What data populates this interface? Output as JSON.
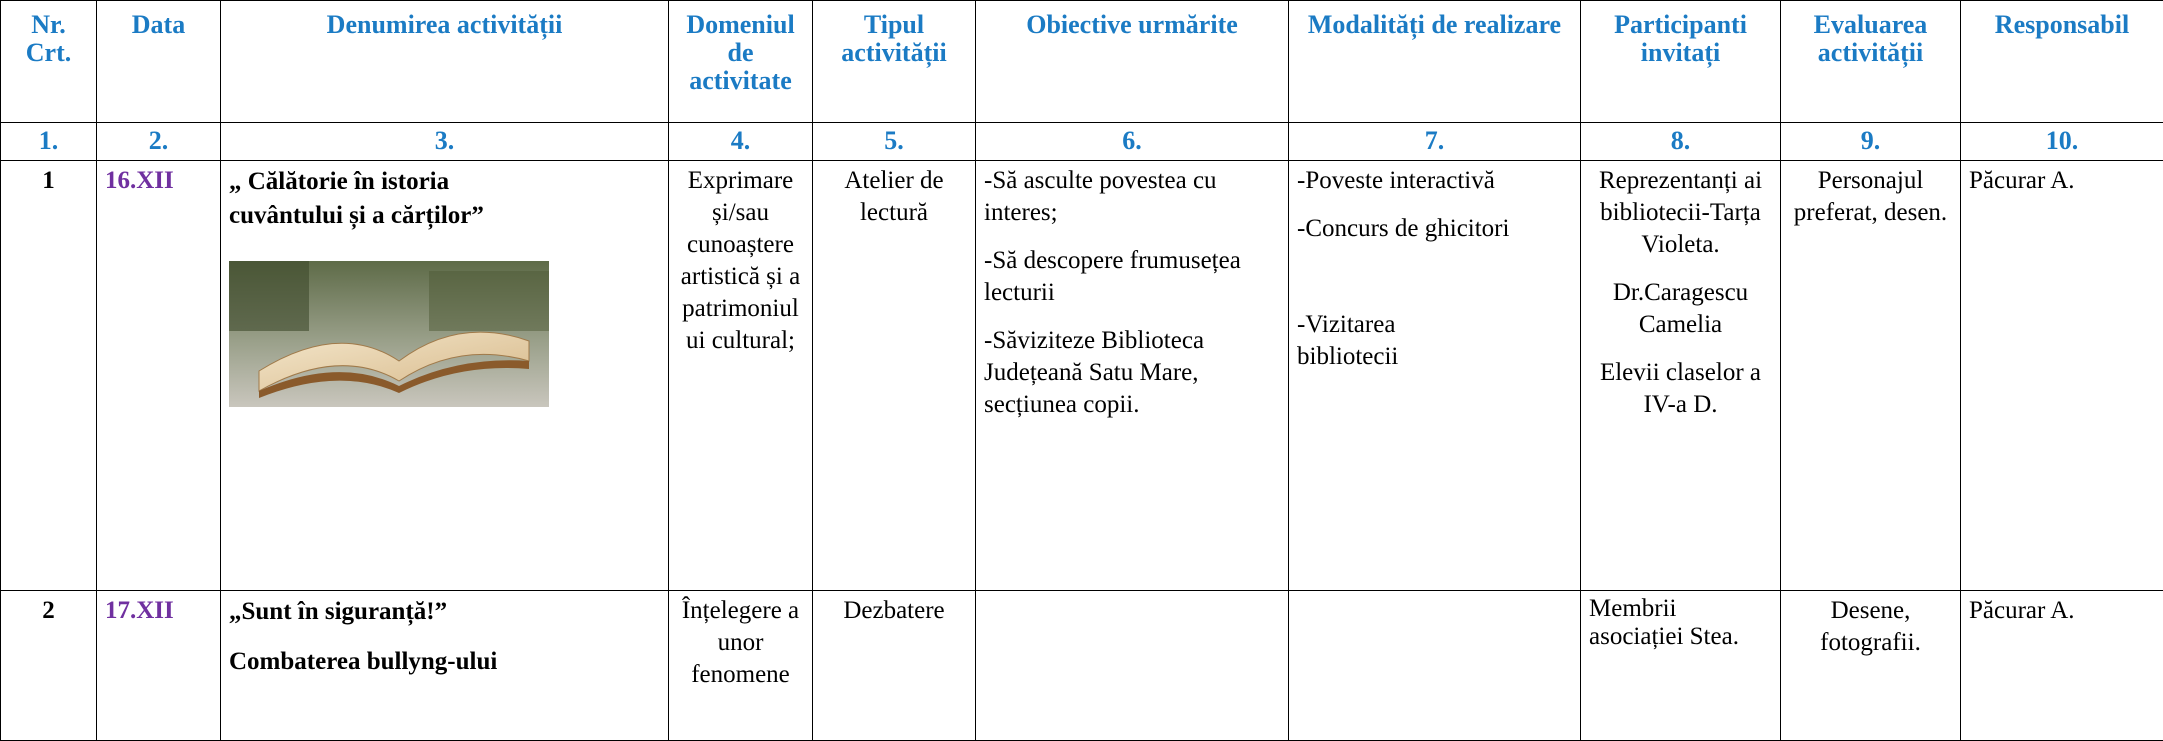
{
  "header": {
    "columns": [
      "Nr. Crt.",
      "Data",
      "Denumirea activității",
      "Domeniul de activitate",
      "Tipul activității",
      "Obiective urmărite",
      "Modalități de realizare",
      "Participanti invitați",
      "Evaluarea activității",
      "Responsabil"
    ],
    "numbers": [
      "1.",
      "2.",
      "3.",
      "4.",
      "5.",
      "6.",
      "7.",
      "8.",
      "9.",
      "10."
    ]
  },
  "rows": [
    {
      "nr": "1",
      "date": "16.XII",
      "title": [
        "„ Călătorie în istoria cuvântului și a cărților”"
      ],
      "domain": "Exprimare și/sau cunoaștere artistică și a patrimoniului cultural;",
      "type": "Atelier de lectură",
      "objectives": [
        "-Să asculte povestea cu interes;",
        "-Să descopere frumusețea lecturii",
        "-Săviziteze Biblioteca Județeană Satu Mare, secțiunea copii."
      ],
      "modalities": [
        "-Poveste interactivă",
        "-Concurs de ghicitori",
        "-Vizitarea bibliotecii"
      ],
      "participants": [
        "Reprezentanți ai bibliotecii-Tarța Violeta.",
        "Dr.Caragescu Camelia",
        "Elevii claselor a IV-a  D."
      ],
      "evaluation": "Personajul preferat, desen.",
      "responsible": "Păcurar A."
    },
    {
      "nr": "2",
      "date": "17.XII",
      "title": [
        "„Sunt în siguranță!”",
        "Combaterea bullyng-ului"
      ],
      "domain": "Înțelegere a unor fenomene",
      "type": "Dezbatere",
      "participants": [
        "Membrii asociației Stea."
      ],
      "evaluation": "Desene, fotografii.",
      "responsible": "Păcurar A."
    }
  ]
}
